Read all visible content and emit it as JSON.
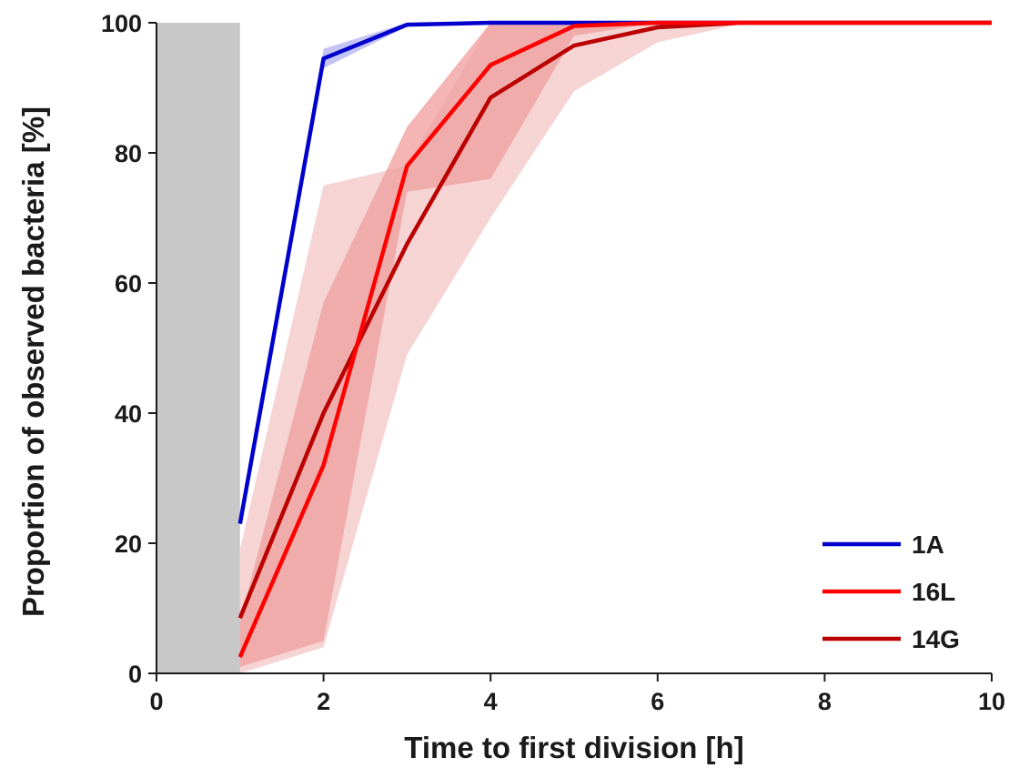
{
  "chart_data": {
    "type": "line",
    "title": "",
    "xlabel": "Time to first division [h]",
    "ylabel": "Proportion of observed bacteria [%]",
    "xlim": [
      0,
      10
    ],
    "ylim": [
      0,
      100
    ],
    "xticks": [
      0,
      2,
      4,
      6,
      8,
      10
    ],
    "yticks": [
      0,
      20,
      40,
      60,
      80,
      100
    ],
    "grid": false,
    "legend_position": "bottom-right",
    "shaded_region": {
      "x": [
        0,
        1
      ],
      "color": "#c8c8c8"
    },
    "series": [
      {
        "name": "1A",
        "color": "#0000cc",
        "band_color": "#7f7fe6",
        "x": [
          1,
          2,
          3,
          4,
          5,
          6,
          7,
          8,
          9,
          10
        ],
        "values": [
          23,
          94.5,
          99.7,
          100,
          100,
          100,
          100,
          100,
          100,
          100
        ],
        "lower": [
          23,
          93,
          99.4,
          100,
          100,
          100,
          100,
          100,
          100,
          100
        ],
        "upper": [
          23,
          96,
          100,
          100,
          100,
          100,
          100,
          100,
          100,
          100
        ]
      },
      {
        "name": "16L",
        "color": "#ff0000",
        "band_color": "#e85c5c",
        "x": [
          1,
          2,
          3,
          4,
          5,
          6,
          7,
          8,
          9,
          10
        ],
        "values": [
          2.5,
          32,
          78,
          93.5,
          99.5,
          100,
          100,
          100,
          100,
          100
        ],
        "lower": [
          1,
          5,
          74,
          76,
          98,
          100,
          100,
          100,
          100,
          100
        ],
        "upper": [
          8,
          57,
          84,
          100,
          100,
          100,
          100,
          100,
          100,
          100
        ]
      },
      {
        "name": "14G",
        "color": "#bb0000",
        "band_color": "#eba0a0",
        "x": [
          1,
          2,
          3,
          4,
          5,
          6,
          7,
          8,
          9,
          10
        ],
        "values": [
          8.5,
          40,
          66,
          88.5,
          96.5,
          99.3,
          100,
          100,
          100,
          100
        ],
        "lower": [
          0,
          4,
          49,
          70,
          89.5,
          97,
          99.8,
          100,
          100,
          100
        ],
        "upper": [
          19,
          75,
          78,
          100,
          100,
          100,
          100,
          100,
          100,
          100
        ]
      }
    ]
  }
}
